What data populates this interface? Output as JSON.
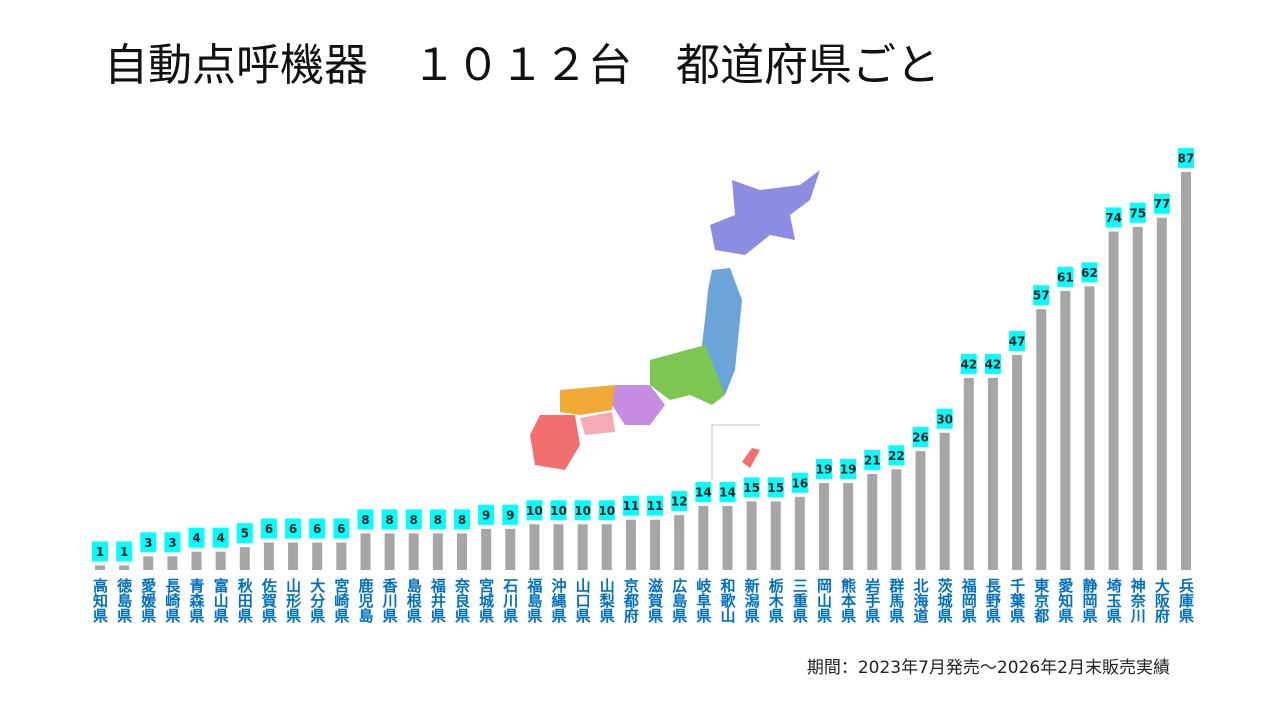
{
  "chart_data": {
    "type": "bar",
    "title": "自動点呼機器　１０１２台　都道府県ごと",
    "note": "期間：2023年7月発売～2026年2月末販売実績",
    "categories": [
      "高知県",
      "徳島県",
      "愛媛県",
      "長崎県",
      "青森県",
      "富山県",
      "秋田県",
      "佐賀県",
      "山形県",
      "大分県",
      "宮崎県",
      "鹿児島",
      "香川県",
      "島根県",
      "福井県",
      "奈良県",
      "宮城県",
      "石川県",
      "福島県",
      "沖縄県",
      "山口県",
      "山梨県",
      "京都府",
      "滋賀県",
      "広島県",
      "岐阜県",
      "和歌山",
      "新潟県",
      "栃木県",
      "三重県",
      "岡山県",
      "熊本県",
      "岩手県",
      "群馬県",
      "北海道",
      "茨城県",
      "福岡県",
      "長野県",
      "千葉県",
      "東京都",
      "愛知県",
      "静岡県",
      "埼玉県",
      "神奈川",
      "大阪府",
      "兵庫県"
    ],
    "values": [
      1,
      1,
      3,
      3,
      4,
      4,
      5,
      6,
      6,
      6,
      6,
      8,
      8,
      8,
      8,
      8,
      9,
      9,
      10,
      10,
      10,
      10,
      11,
      11,
      12,
      14,
      14,
      15,
      15,
      16,
      19,
      19,
      21,
      22,
      26,
      30,
      42,
      42,
      47,
      57,
      61,
      62,
      74,
      75,
      77,
      87
    ],
    "color": "#a6a6a6",
    "label_color": "#00ffff",
    "category_color": "#0070c0"
  }
}
